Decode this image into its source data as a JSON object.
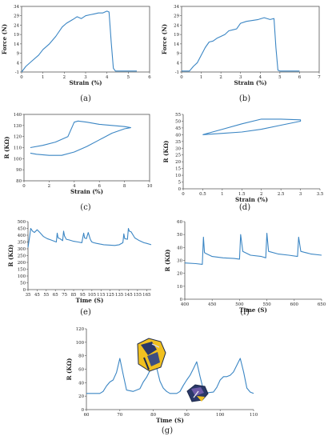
{
  "colors": {
    "line": "#3b86c4",
    "axis": "#555555",
    "text": "#222222"
  },
  "chart_data": [
    {
      "id": "a",
      "caption": "(a)",
      "type": "line",
      "xlabel": "Strain (%)",
      "ylabel": "Force (N)",
      "xlim": [
        0,
        6
      ],
      "ylim": [
        -1,
        34
      ],
      "xticks": [
        "0",
        "1",
        "2",
        "3",
        "4",
        "5",
        "6"
      ],
      "yticks": [
        "-1",
        "4",
        "9",
        "14",
        "19",
        "24",
        "29",
        "34"
      ],
      "grid": false,
      "series": [
        {
          "x": [
            0,
            0.2,
            0.5,
            0.8,
            1.0,
            1.3,
            1.6,
            1.9,
            2.1,
            2.4,
            2.6,
            2.8,
            3.0,
            3.2,
            3.4,
            3.6,
            3.8,
            4.0,
            4.1,
            4.2,
            4.3,
            4.4,
            4.6,
            5.0,
            5.4
          ],
          "y": [
            -1,
            2,
            5,
            8,
            11,
            14,
            18,
            23,
            25,
            27,
            28.5,
            27.5,
            29,
            29.5,
            30,
            30.5,
            30.5,
            31.5,
            31,
            15,
            1,
            -0.5,
            -0.5,
            -0.5,
            -0.5
          ]
        }
      ]
    },
    {
      "id": "b",
      "caption": "(b)",
      "type": "line",
      "xlabel": "Strain (%)",
      "ylabel": "Force (N)",
      "xlim": [
        0,
        7
      ],
      "ylim": [
        -1,
        34
      ],
      "xticks": [
        "0",
        "1",
        "2",
        "3",
        "4",
        "5",
        "6",
        "7"
      ],
      "yticks": [
        "-1",
        "4",
        "9",
        "14",
        "19",
        "24",
        "29",
        "34"
      ],
      "grid": false,
      "series": [
        {
          "x": [
            0,
            0.4,
            0.6,
            0.8,
            1.0,
            1.2,
            1.4,
            1.6,
            1.8,
            2.0,
            2.2,
            2.4,
            2.6,
            2.8,
            3.0,
            3.3,
            3.6,
            3.9,
            4.2,
            4.5,
            4.7,
            4.8,
            4.9,
            5.0,
            5.3,
            5.8,
            6.0
          ],
          "y": [
            -0.5,
            -0.5,
            2,
            4,
            8,
            12,
            15,
            15.5,
            17,
            18,
            19,
            21,
            21.5,
            22,
            25,
            26,
            26.5,
            27,
            28,
            27,
            27.5,
            12,
            0,
            -0.5,
            -0.5,
            -0.5,
            -0.5
          ]
        }
      ]
    },
    {
      "id": "c",
      "caption": "(c)",
      "type": "line",
      "xlabel": "Strain (%)",
      "ylabel": "R (KΩ)",
      "xlim": [
        0,
        10
      ],
      "ylim": [
        80,
        140
      ],
      "xticks": [
        "0",
        "2",
        "4",
        "6",
        "8",
        "10"
      ],
      "yticks": [
        "80",
        "90",
        "100",
        "110",
        "120",
        "130",
        "140"
      ],
      "grid": false,
      "series": [
        {
          "x": [
            0.5,
            1.5,
            2.5,
            3.5,
            4.0,
            4.3,
            5.0,
            6.0,
            7.0,
            8.0,
            8.5,
            8.0,
            7.0,
            6.0,
            5.0,
            4.0,
            3.0,
            2.0,
            1.0,
            0.5
          ],
          "y": [
            110,
            112,
            115,
            120,
            133,
            134,
            133,
            131,
            130,
            129,
            128,
            127,
            123,
            117,
            111,
            106,
            103,
            103,
            104,
            105
          ]
        }
      ]
    },
    {
      "id": "d",
      "caption": "(d)",
      "type": "line",
      "xlabel": "Strain (%)",
      "ylabel": "R (KΩ)",
      "xlim": [
        0,
        3.5
      ],
      "ylim": [
        0,
        55
      ],
      "xticks": [
        "0",
        "0.5",
        "1",
        "1.5",
        "2",
        "2.5",
        "3",
        "3.5"
      ],
      "yticks": [
        "0",
        "5",
        "10",
        "15",
        "20",
        "25",
        "30",
        "35",
        "40",
        "45",
        "50",
        "55"
      ],
      "grid": false,
      "series": [
        {
          "x": [
            0.5,
            1.0,
            1.5,
            2.0,
            2.5,
            3.0,
            3.0,
            2.5,
            2.0,
            1.5,
            1.0,
            0.5
          ],
          "y": [
            40,
            44,
            48,
            51.5,
            51.5,
            51,
            50,
            47,
            44,
            42,
            41,
            40
          ]
        }
      ]
    },
    {
      "id": "e",
      "caption": "(e)",
      "type": "line",
      "xlabel": "Time (S)",
      "ylabel": "R (KΩ)",
      "xlim": [
        35,
        170
      ],
      "ylim": [
        0,
        500
      ],
      "xticks": [
        "35",
        "45",
        "55",
        "65",
        "75",
        "85",
        "95",
        "105",
        "115",
        "125",
        "135",
        "145",
        "155",
        "165"
      ],
      "yticks": [
        "0",
        "50",
        "100",
        "150",
        "200",
        "250",
        "300",
        "350",
        "400",
        "450",
        "500"
      ],
      "grid": false,
      "series": [
        {
          "x": [
            35,
            37,
            38,
            40,
            42,
            45,
            48,
            52,
            56,
            60,
            64,
            66,
            67,
            68,
            70,
            73,
            74,
            75,
            77,
            80,
            85,
            90,
            94,
            96,
            97,
            99,
            101,
            103,
            104,
            105,
            107,
            110,
            114,
            118,
            130,
            135,
            139,
            140,
            141,
            144,
            145,
            146,
            148,
            152,
            157,
            162,
            165,
            170
          ],
          "y": [
            310,
            400,
            450,
            430,
            420,
            440,
            420,
            390,
            375,
            365,
            355,
            350,
            415,
            380,
            375,
            360,
            430,
            395,
            370,
            365,
            355,
            350,
            345,
            415,
            380,
            375,
            420,
            375,
            360,
            350,
            345,
            340,
            335,
            330,
            325,
            330,
            345,
            410,
            375,
            370,
            450,
            430,
            425,
            380,
            360,
            345,
            340,
            330
          ]
        }
      ]
    },
    {
      "id": "f",
      "caption": "(f)",
      "type": "line",
      "xlabel": "Time (S)",
      "ylabel": "R (KΩ)",
      "xlim": [
        400,
        650
      ],
      "ylim": [
        0,
        60
      ],
      "xticks": [
        "400",
        "450",
        "500",
        "550",
        "600",
        "650"
      ],
      "yticks": [
        "0",
        "10",
        "20",
        "30",
        "40",
        "50",
        "60"
      ],
      "grid": false,
      "series": [
        {
          "x": [
            400,
            420,
            432,
            434,
            436,
            440,
            450,
            470,
            490,
            500,
            502,
            506,
            520,
            540,
            548,
            550,
            553,
            570,
            590,
            606,
            608,
            612,
            630,
            650
          ],
          "y": [
            28,
            27.5,
            27,
            48,
            36,
            35,
            33,
            32,
            31.5,
            31,
            50,
            37,
            34,
            33,
            32,
            51,
            37,
            35,
            34,
            33,
            48,
            37,
            35,
            34
          ]
        }
      ]
    },
    {
      "id": "g",
      "caption": "(g)",
      "type": "line",
      "xlabel": "Time (S)",
      "ylabel": "R (KΩ)",
      "xlim": [
        60,
        110
      ],
      "ylim": [
        0,
        120
      ],
      "xticks": [
        "60",
        "70",
        "80",
        "90",
        "100",
        "110"
      ],
      "yticks": [
        "0",
        "20",
        "40",
        "60",
        "80",
        "100",
        "120"
      ],
      "grid": false,
      "series": [
        {
          "x": [
            60,
            62,
            64,
            65,
            66,
            67,
            68,
            69,
            70,
            71,
            72,
            74,
            76,
            77,
            78,
            79,
            80,
            81,
            82,
            83,
            84,
            85,
            86,
            87,
            88,
            89,
            90,
            91,
            92,
            93,
            94,
            95,
            96,
            98,
            99,
            100,
            101,
            102,
            103,
            104,
            105,
            106,
            107,
            108,
            109,
            110
          ],
          "y": [
            24,
            24,
            24,
            27,
            35,
            41,
            44,
            55,
            76,
            52,
            29,
            27,
            31,
            41,
            48,
            58,
            79,
            62,
            42,
            32,
            27,
            24,
            24,
            24,
            27,
            36,
            44,
            51,
            61,
            71,
            49,
            29,
            25,
            26,
            33,
            44,
            49,
            49,
            51,
            56,
            66,
            76,
            56,
            32,
            26,
            24
          ]
        }
      ]
    }
  ]
}
